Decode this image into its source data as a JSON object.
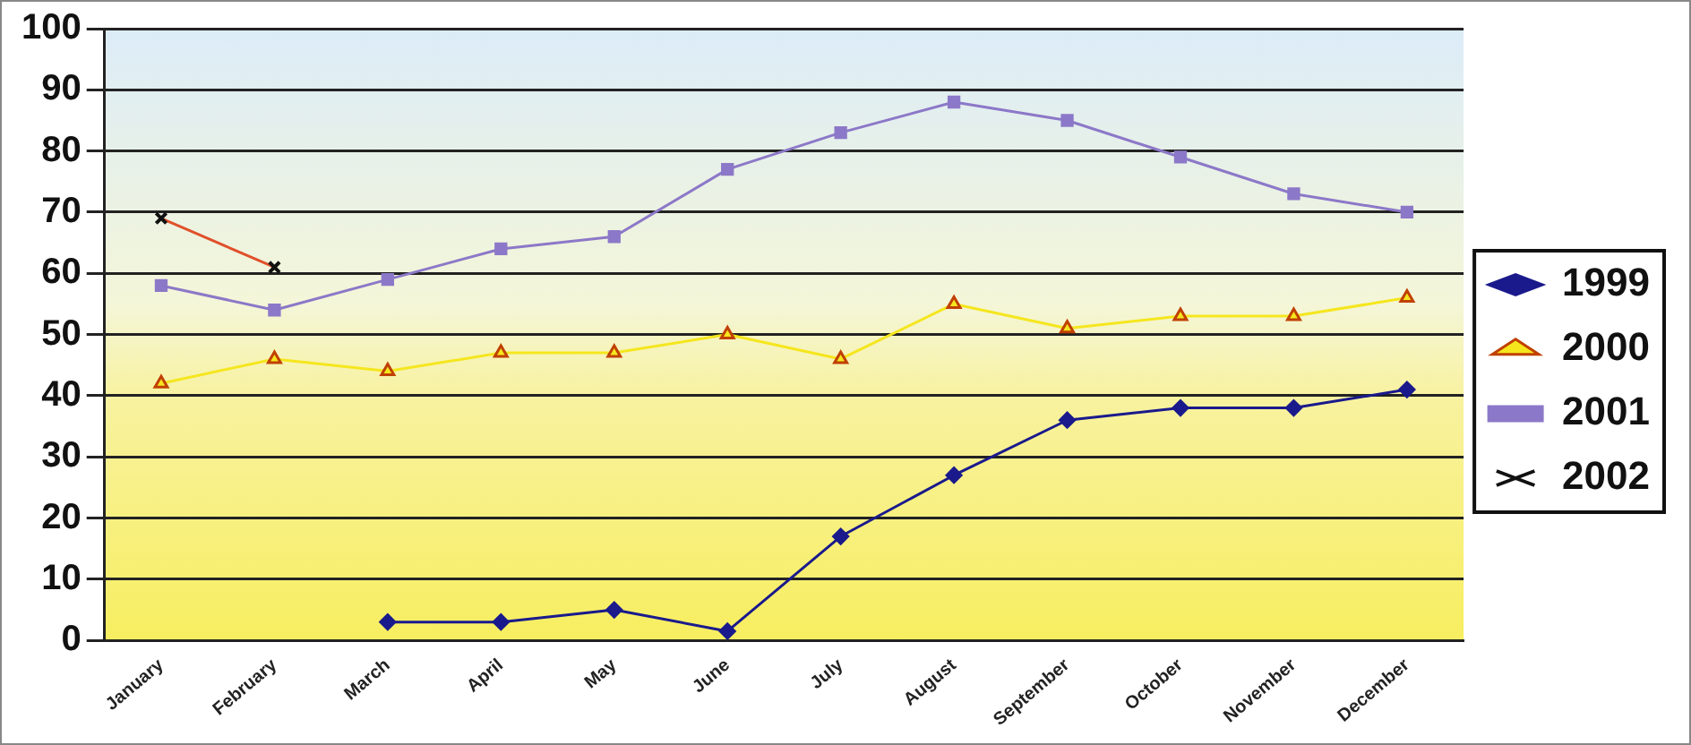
{
  "chart_data": {
    "type": "line",
    "categories": [
      "January",
      "February",
      "March",
      "April",
      "May",
      "June",
      "July",
      "August",
      "September",
      "October",
      "November",
      "December"
    ],
    "series": [
      {
        "name": "1999",
        "color": "#1a1a8c",
        "marker": "diamond",
        "values": [
          null,
          null,
          3,
          3,
          5,
          1.5,
          17,
          27,
          36,
          38,
          38,
          41
        ]
      },
      {
        "name": "2000",
        "color": "#f5e61e",
        "marker": "triangle",
        "values": [
          42,
          46,
          44,
          47,
          47,
          50,
          46,
          55,
          51,
          53,
          53,
          56
        ]
      },
      {
        "name": "2001",
        "color": "#8c78c8",
        "marker": "square",
        "values": [
          58,
          54,
          59,
          64,
          66,
          77,
          83,
          88,
          85,
          79,
          73,
          70
        ]
      },
      {
        "name": "2002",
        "color": "#e0502a",
        "marker": "cross",
        "values": [
          69,
          61,
          null,
          null,
          null,
          null,
          null,
          null,
          null,
          null,
          null,
          null
        ]
      }
    ],
    "ylim": [
      0,
      100
    ],
    "yticks": [
      0,
      10,
      20,
      30,
      40,
      50,
      60,
      70,
      80,
      90,
      100
    ],
    "grid": "y",
    "legend": "right",
    "line_style": "solid"
  }
}
